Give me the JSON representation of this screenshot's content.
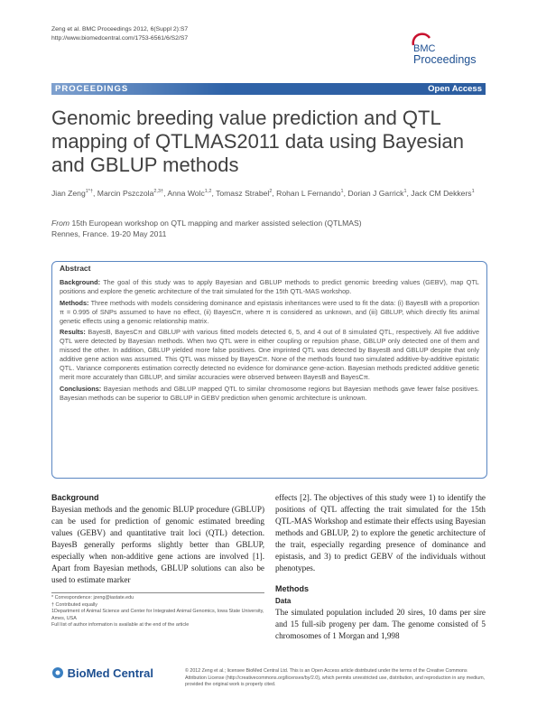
{
  "header": {
    "citation": "Zeng et al. BMC Proceedings 2012, 6(Suppl 2):S7",
    "url": "http://www.biomedcentral.com/1753-6561/6/S2/S7"
  },
  "logo": {
    "line1": "BMC",
    "line2": "Proceedings"
  },
  "banner": {
    "section": "PROCEEDINGS",
    "access": "Open Access"
  },
  "title": "Genomic breeding value prediction and QTL mapping of QTLMAS2011 data using Bayesian and GBLUP methods",
  "authors": [
    {
      "name": "Jian Zeng",
      "sup": "1*†"
    },
    {
      "name": "Marcin Pszczola",
      "sup": "2,3†"
    },
    {
      "name": "Anna Wolc",
      "sup": "1,2"
    },
    {
      "name": "Tomasz Strabel",
      "sup": "2"
    },
    {
      "name": "Rohan L Fernando",
      "sup": "1"
    },
    {
      "name": "Dorian J Garrick",
      "sup": "1"
    },
    {
      "name": "Jack CM Dekkers",
      "sup": "1"
    }
  ],
  "meeting": {
    "from": "From",
    "text": "15th European workshop on QTL mapping and marker assisted selection (QTLMAS)",
    "place": "Rennes, France. 19-20 May 2011"
  },
  "abstract": {
    "heading": "Abstract",
    "paragraphs": [
      {
        "label": "Background:",
        "text": "The goal of this study was to apply Bayesian and GBLUP methods to predict genomic breeding values (GEBV), map QTL positions and explore the genetic architecture of the trait simulated for the 15th QTL-MAS workshop."
      },
      {
        "label": "Methods:",
        "text": "Three methods with models considering dominance and epistasis inheritances were used to fit the data: (i) BayesB with a proportion π = 0.995 of SNPs assumed to have no effect, (ii) BayesCπ, where π is considered as unknown, and (iii) GBLUP, which directly fits animal genetic effects using a genomic relationship matrix."
      },
      {
        "label": "Results:",
        "text": "BayesB, BayesCπ and GBLUP with various fitted models detected 6, 5, and 4 out of 8 simulated QTL, respectively. All five additive QTL were detected by Bayesian methods. When two QTL were in either coupling or repulsion phase, GBLUP only detected one of them and missed the other. In addition, GBLUP yielded more false positives. One imprinted QTL was detected by BayesB and GBLUP despite that only additive gene action was assumed. This QTL was missed by BayesCπ. None of the methods found two simulated additive-by-additive epistatic QTL. Variance components estimation correctly detected no evidence for dominance gene-action. Bayesian methods predicted additive genetic merit more accurately than GBLUP, and similar accuracies were observed between BayesB and BayesCπ."
      },
      {
        "label": "Conclusions:",
        "text": "Bayesian methods and GBLUP mapped QTL to similar chromosome regions but Bayesian methods gave fewer false positives. Bayesian methods can be superior to GBLUP in GEBV prediction when genomic architecture is unknown."
      }
    ]
  },
  "body": {
    "background_heading": "Background",
    "left_text": "Bayesian methods and the genomic BLUP procedure (GBLUP) can be used for prediction of genomic estimated breeding values (GEBV) and quantitative trait loci (QTL) detection. BayesB generally performs slightly better than GBLUP, especially when non-additive gene actions are involved [1]. Apart from Bayesian methods, GBLUP solutions can also be used to estimate marker",
    "right_text": "effects [2]. The objectives of this study were 1) to identify the positions of QTL affecting the trait simulated for the 15th QTL-MAS Workshop and estimate their effects using Bayesian methods and GBLUP, 2) to explore the genetic architecture of the trait, especially regarding presence of dominance and epistasis, and 3) to predict GEBV of the individuals without phenotypes.",
    "methods_heading": "Methods",
    "data_heading": "Data",
    "data_text": "The simulated population included 20 sires, 10 dams per sire and 15 full-sib progeny per dam. The genome consisted of 5 chromosomes of 1 Morgan and 1,998"
  },
  "footnotes": [
    "* Correspondence: jzeng@iastate.edu",
    "† Contributed equally",
    "1Department of Animal Science and Center for Integrated Animal Genomics, Iowa State University, Ames, USA",
    "Full list of author information is available at the end of the article"
  ],
  "footer": {
    "logo": "BioMed Central",
    "copyright": "© 2012 Zeng et al.; licensee BioMed Central Ltd. This is an Open Access article distributed under the terms of the Creative Commons Attribution License (http://creativecommons.org/licenses/by/2.0), which permits unrestricted use, distribution, and reproduction in any medium, provided the original work is properly cited."
  }
}
